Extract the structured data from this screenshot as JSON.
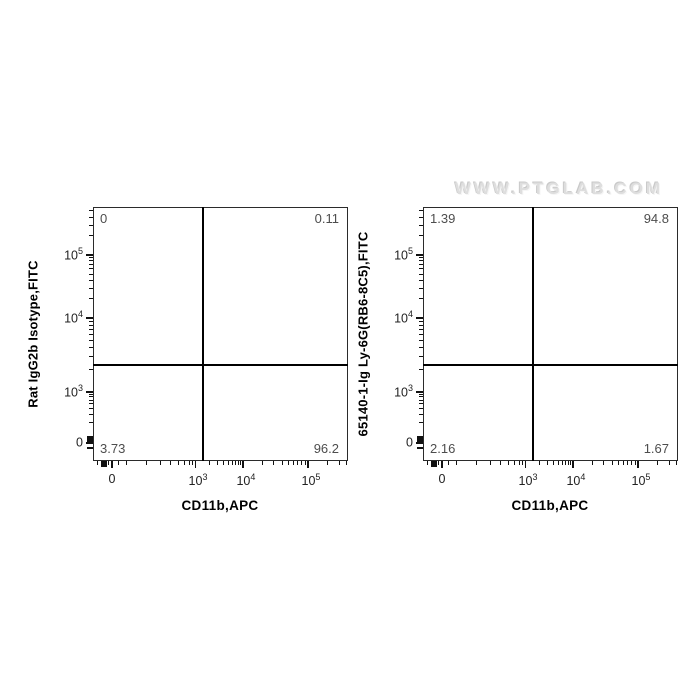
{
  "watermark": "WWW.PTGLAB.COM",
  "dot_colors": [
    "#20338f",
    "#2a52d4",
    "#29b8d8",
    "#3fc24a",
    "#c6d92e",
    "#f59a1d",
    "#e82e1c"
  ],
  "sparse_alt_color": "#10194d",
  "axis_ticks": {
    "x_major": [
      {
        "base": "0",
        "exp": "",
        "frac": 0.0745
      },
      {
        "base": "10",
        "exp": "3",
        "frac": 0.4
      },
      {
        "base": "10",
        "exp": "4",
        "frac": 0.588
      },
      {
        "base": "10",
        "exp": "5",
        "frac": 0.843
      }
    ],
    "x_minor": [
      {
        "frac": 0.018,
        "w": 1
      },
      {
        "frac": 0.032,
        "w": 4
      },
      {
        "frac": 0.05,
        "w": 2
      },
      {
        "frac": 0.062,
        "w": 1
      },
      {
        "frac": 0.1,
        "w": 1
      },
      {
        "frac": 0.13,
        "w": 1
      },
      {
        "frac": 0.21,
        "w": 1
      },
      {
        "frac": 0.265,
        "w": 1
      },
      {
        "frac": 0.305,
        "w": 1
      },
      {
        "frac": 0.335,
        "w": 1
      },
      {
        "frac": 0.358,
        "w": 1
      },
      {
        "frac": 0.377,
        "w": 1
      },
      {
        "frac": 0.39,
        "w": 1
      },
      {
        "frac": 0.4566,
        "w": 1
      },
      {
        "frac": 0.4897,
        "w": 1
      },
      {
        "frac": 0.5132,
        "w": 1
      },
      {
        "frac": 0.5313,
        "w": 1
      },
      {
        "frac": 0.5462,
        "w": 1
      },
      {
        "frac": 0.5589,
        "w": 1
      },
      {
        "frac": 0.5698,
        "w": 1
      },
      {
        "frac": 0.5795,
        "w": 1
      },
      {
        "frac": 0.6648,
        "w": 1
      },
      {
        "frac": 0.7097,
        "w": 1
      },
      {
        "frac": 0.7416,
        "w": 1
      },
      {
        "frac": 0.7662,
        "w": 1
      },
      {
        "frac": 0.7864,
        "w": 1
      },
      {
        "frac": 0.8036,
        "w": 1
      },
      {
        "frac": 0.8185,
        "w": 1
      },
      {
        "frac": 0.8316,
        "w": 1
      },
      {
        "frac": 0.92,
        "w": 1
      },
      {
        "frac": 0.965,
        "w": 1
      },
      {
        "frac": 0.996,
        "w": 1
      }
    ],
    "y_major": [
      {
        "base": "10",
        "exp": "5",
        "frac": 0.189
      },
      {
        "base": "10",
        "exp": "4",
        "frac": 0.437
      },
      {
        "base": "10",
        "exp": "3",
        "frac": 0.728
      },
      {
        "base": "0",
        "exp": "",
        "frac": 0.929
      }
    ],
    "y_minor": [
      {
        "frac": 0.013,
        "w": 1
      },
      {
        "frac": 0.04,
        "w": 1
      },
      {
        "frac": 0.071,
        "w": 1
      },
      {
        "frac": 0.114,
        "w": 1
      },
      {
        "frac": 0.199,
        "w": 1
      },
      {
        "frac": 0.212,
        "w": 1
      },
      {
        "frac": 0.227,
        "w": 1
      },
      {
        "frac": 0.244,
        "w": 1
      },
      {
        "frac": 0.264,
        "w": 1
      },
      {
        "frac": 0.288,
        "w": 1
      },
      {
        "frac": 0.319,
        "w": 1
      },
      {
        "frac": 0.362,
        "w": 1
      },
      {
        "frac": 0.45,
        "w": 1
      },
      {
        "frac": 0.465,
        "w": 1
      },
      {
        "frac": 0.482,
        "w": 1
      },
      {
        "frac": 0.502,
        "w": 1
      },
      {
        "frac": 0.525,
        "w": 1
      },
      {
        "frac": 0.553,
        "w": 1
      },
      {
        "frac": 0.589,
        "w": 1
      },
      {
        "frac": 0.64,
        "w": 1
      },
      {
        "frac": 0.737,
        "w": 1
      },
      {
        "frac": 0.748,
        "w": 1
      },
      {
        "frac": 0.76,
        "w": 1
      },
      {
        "frac": 0.775,
        "w": 1
      },
      {
        "frac": 0.793,
        "w": 1
      },
      {
        "frac": 0.818,
        "w": 1
      },
      {
        "frac": 0.848,
        "w": 1
      },
      {
        "frac": 0.902,
        "w": 3
      },
      {
        "frac": 0.917,
        "w": 4
      },
      {
        "frac": 0.948,
        "w": 2
      }
    ]
  },
  "chart_data": [
    {
      "type": "scatter",
      "panel": "isotype-control",
      "xlabel": "CD11b,APC",
      "ylabel": "Rat IgG2b Isotype,FITC",
      "x_scale": "biexponential (0, 10^3, 10^4, 10^5)",
      "y_scale": "biexponential (0, 10^3, 10^4, 10^5)",
      "quadrants": {
        "top_left": "0",
        "top_right": "0.11",
        "bottom_left": "3.73",
        "bottom_right": "96.2"
      },
      "gate_x_frac": 0.431,
      "gate_y_frac": 0.622,
      "populations": [
        {
          "name": "cd11b-pos-main",
          "fx": 0.616,
          "fy": 0.78,
          "sx": 0.072,
          "sy": 0.031,
          "rho": -0.22,
          "n": 2800,
          "palette": [
            [
              1.9,
              0
            ],
            [
              1.55,
              1
            ],
            [
              1.2,
              2
            ],
            [
              0.82,
              3
            ],
            [
              0.42,
              4
            ],
            [
              0.12,
              5
            ],
            [
              0,
              6
            ]
          ],
          "hx": 0,
          "hy": 0
        },
        {
          "name": "cd11b-neg-band",
          "fx": 0.235,
          "fy": 0.79,
          "sx": 0.075,
          "sy": 0.023,
          "rho": -0.15,
          "n": 200,
          "palette": [
            [
              0,
              0
            ]
          ],
          "hx": 0,
          "hy": 0
        },
        {
          "name": "above-gate-strays",
          "fx": 0.62,
          "fy": 0.565,
          "sx": 0.1,
          "sy": 0.035,
          "rho": 0,
          "n": 16,
          "palette": [
            [
              0,
              0
            ]
          ],
          "hx": 0,
          "hy": 0
        }
      ]
    },
    {
      "type": "scatter",
      "panel": "ly6g-stain",
      "xlabel": "CD11b,APC",
      "ylabel": "65140-1-Ig Ly-6G(RB6-8C5),FITC",
      "x_scale": "biexponential (0, 10^3, 10^4, 10^5)",
      "y_scale": "biexponential (0, 10^3, 10^4, 10^5)",
      "quadrants": {
        "top_left": "1.39",
        "top_right": "94.8",
        "bottom_left": "2.16",
        "bottom_right": "1.67"
      },
      "gate_x_frac": 0.431,
      "gate_y_frac": 0.622,
      "populations": [
        {
          "name": "ly6g-pos-cd11b-pos-main",
          "fx": 0.66,
          "fy": 0.252,
          "sx": 0.085,
          "sy": 0.04,
          "rho": 0.2,
          "n": 2100,
          "palette": [
            [
              2.0,
              0
            ],
            [
              1.55,
              1
            ],
            [
              1.2,
              2
            ],
            [
              0.85,
              3
            ],
            [
              0.5,
              4
            ],
            [
              0.27,
              5
            ],
            [
              0,
              6
            ]
          ],
          "hx": -0.022,
          "hy": -0.012
        },
        {
          "name": "main-tail-upper",
          "fx": 0.72,
          "fy": 0.42,
          "sx": 0.095,
          "sy": 0.062,
          "rho": 0.1,
          "n": 520,
          "palette": [
            [
              0,
              0
            ]
          ],
          "hx": 0,
          "hy": 0
        },
        {
          "name": "main-tail-lower",
          "fx": 0.67,
          "fy": 0.555,
          "sx": 0.11,
          "sy": 0.05,
          "rho": 0,
          "n": 260,
          "palette": [
            [
              0,
              0
            ]
          ],
          "hx": 0,
          "hy": 0
        },
        {
          "name": "cd11b-pos-ly6g-neg",
          "fx": 0.7,
          "fy": 0.72,
          "sx": 0.12,
          "sy": 0.06,
          "rho": 0,
          "n": 120,
          "palette": [
            [
              0,
              0
            ]
          ],
          "hx": 0,
          "hy": 0
        },
        {
          "name": "left-column",
          "fx": 0.33,
          "fy": 0.5,
          "sx": 0.05,
          "sy": 0.105,
          "rho": -0.2,
          "n": 140,
          "palette": [
            [
              0,
              0
            ]
          ],
          "hx": 0,
          "hy": 0
        },
        {
          "name": "double-neg",
          "fx": 0.275,
          "fy": 0.8,
          "sx": 0.085,
          "sy": 0.052,
          "rho": 0,
          "n": 165,
          "palette": [
            [
              0,
              0
            ]
          ],
          "hx": 0,
          "hy": 0
        }
      ]
    }
  ]
}
